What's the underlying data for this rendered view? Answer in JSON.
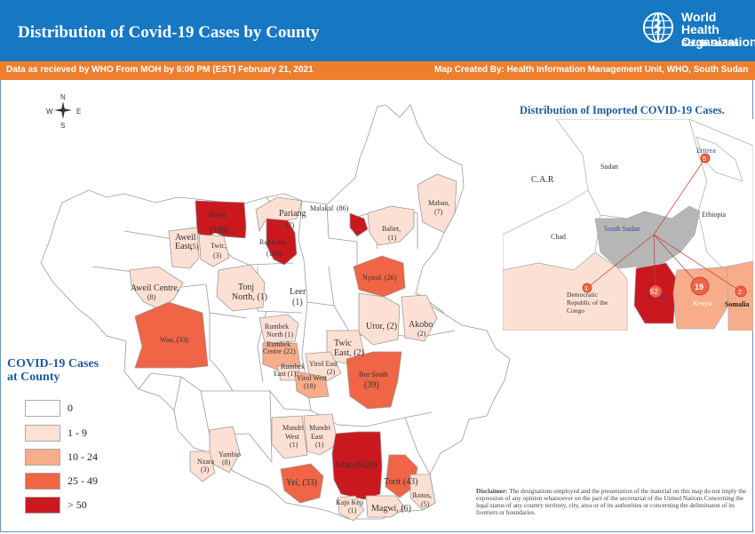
{
  "header": {
    "title": "Distribution of Covid-19 Cases by County",
    "org_name_line1": "World Health",
    "org_name_line2": "Organization",
    "org_sub": "South Sudan"
  },
  "info_bar": {
    "left": "Data as recieved by WHO From  MOH  by  6:00 PM (EST) February  21, 2021",
    "right": "Map Created By: Health Information Management Unit, WHO, South Sudan"
  },
  "compass": {
    "n": "N",
    "s": "S",
    "e": "E",
    "w": "W"
  },
  "colors": {
    "zero": "#ffffff",
    "low": "#fde0d4",
    "mid": "#f7ac8a",
    "high": "#ef6546",
    "top": "#c9191f",
    "header_blue": "#1677c2",
    "bar_orange": "#ee7e2e",
    "legend_title": "#1f5a9e"
  },
  "legend": {
    "title": "COVID-19 Cases at County",
    "items": [
      {
        "label": "0",
        "color": "#ffffff"
      },
      {
        "label": "1 - 9",
        "color": "#fde0d4"
      },
      {
        "label": "10 - 24",
        "color": "#f7ac8a"
      },
      {
        "label": "25 - 49",
        "color": "#ef6546"
      },
      {
        "label": "> 50",
        "color": "#c9191f"
      }
    ]
  },
  "counties": {
    "abyei": {
      "name": "Abyei,",
      "count": "(106)"
    },
    "malakal": {
      "name": "Malakal",
      "count": "(86)"
    },
    "pariang": {
      "name": "Pariang",
      "count": "(7)"
    },
    "rubkona": {
      "name": "Rubkona",
      "count": "(109)"
    },
    "maban": {
      "name": "Maban,",
      "count": "(7)"
    },
    "baliet": {
      "name": "Baliet,",
      "count": "(1)"
    },
    "aweil_east": {
      "name": "Aweil",
      "name2": "East,",
      "count": "(5)"
    },
    "twic": {
      "name": "Twic,",
      "count": "(3)"
    },
    "aweil_centre": {
      "name": "Aweil Centre,",
      "count": "(8)"
    },
    "tonj_north": {
      "name": "Tonj",
      "name2": "North, (1)"
    },
    "leer": {
      "name": "Leer",
      "count": "(1)"
    },
    "nyirol": {
      "name": "Nyirol, (26)"
    },
    "wau": {
      "name": "Wau, (33)"
    },
    "rumbek_north": {
      "name": "Rumbek",
      "name2": "North (1)"
    },
    "rumbek_centre": {
      "name": "Rumbek",
      "name2": "Centre (22)"
    },
    "rumbek_east": {
      "name": "Rumbek",
      "name2": "East (1)"
    },
    "yirol_east": {
      "name": "Yirol East",
      "count": "(2)"
    },
    "yirol_west": {
      "name": "Yirol West",
      "count": "(18)"
    },
    "twic_east": {
      "name": "Twic",
      "name2": "East, (2)"
    },
    "uror": {
      "name": "Uror, (2)"
    },
    "akobo": {
      "name": "Akobo",
      "count": "(2)"
    },
    "bor_south": {
      "name": "Bor South",
      "count": "(39)"
    },
    "mundri_west": {
      "name": "Mundri",
      "name2": "West",
      "count": "(1)"
    },
    "mundri_east": {
      "name": "Mundri",
      "name2": "East",
      "count": "(1)"
    },
    "yambio": {
      "name": "Yambio",
      "count": "(8)"
    },
    "nzara": {
      "name": "Nzara",
      "count": "(3)"
    },
    "juba": {
      "name": "Juba (6020)"
    },
    "yei": {
      "name": "Yei, (33)"
    },
    "torit": {
      "name": "Torit (43)"
    },
    "ikotos": {
      "name": "Ikotos,",
      "count": "(5)"
    },
    "kajo_keji": {
      "name": "Kajo Keji",
      "count": "(1)"
    },
    "magwi": {
      "name": "Magwi, (6)"
    }
  },
  "inset": {
    "title": "Distribution of  Imported COVID-19  Cases.",
    "countries": {
      "car": "C.A.R",
      "sudan": "Sudan",
      "ethiopia": "Ethiopia",
      "chad": "Chad",
      "south_sudan": "South Sudan",
      "eritrea": "Eritrea",
      "drc": "Democratic Republic of the Congo",
      "drc_l1": "Democratic",
      "drc_l2": "Republic of the",
      "drc_l3": "Congo",
      "uganda": "Uganda",
      "kenya": "Kenya",
      "somalia": "Somalia"
    },
    "imports": [
      {
        "country": "Eritrea",
        "count": "5"
      },
      {
        "country": "Democratic Republic of the Congo",
        "count": "1"
      },
      {
        "country": "Uganda",
        "count": "52"
      },
      {
        "country": "Kenya",
        "count": "19"
      },
      {
        "country": "Somalia",
        "count": "2"
      }
    ]
  },
  "disclaimer": {
    "label": "Disclaimer:",
    "text": " The designations employed and the presentation of the material on this map do not imply the expression of any opinion whatsoever on the part of the secretariat of the United Nations Concerning  the legal status of any  country territory, city, area or of its authorities or concerning the deliminaton of its frontiers or boundaries."
  }
}
